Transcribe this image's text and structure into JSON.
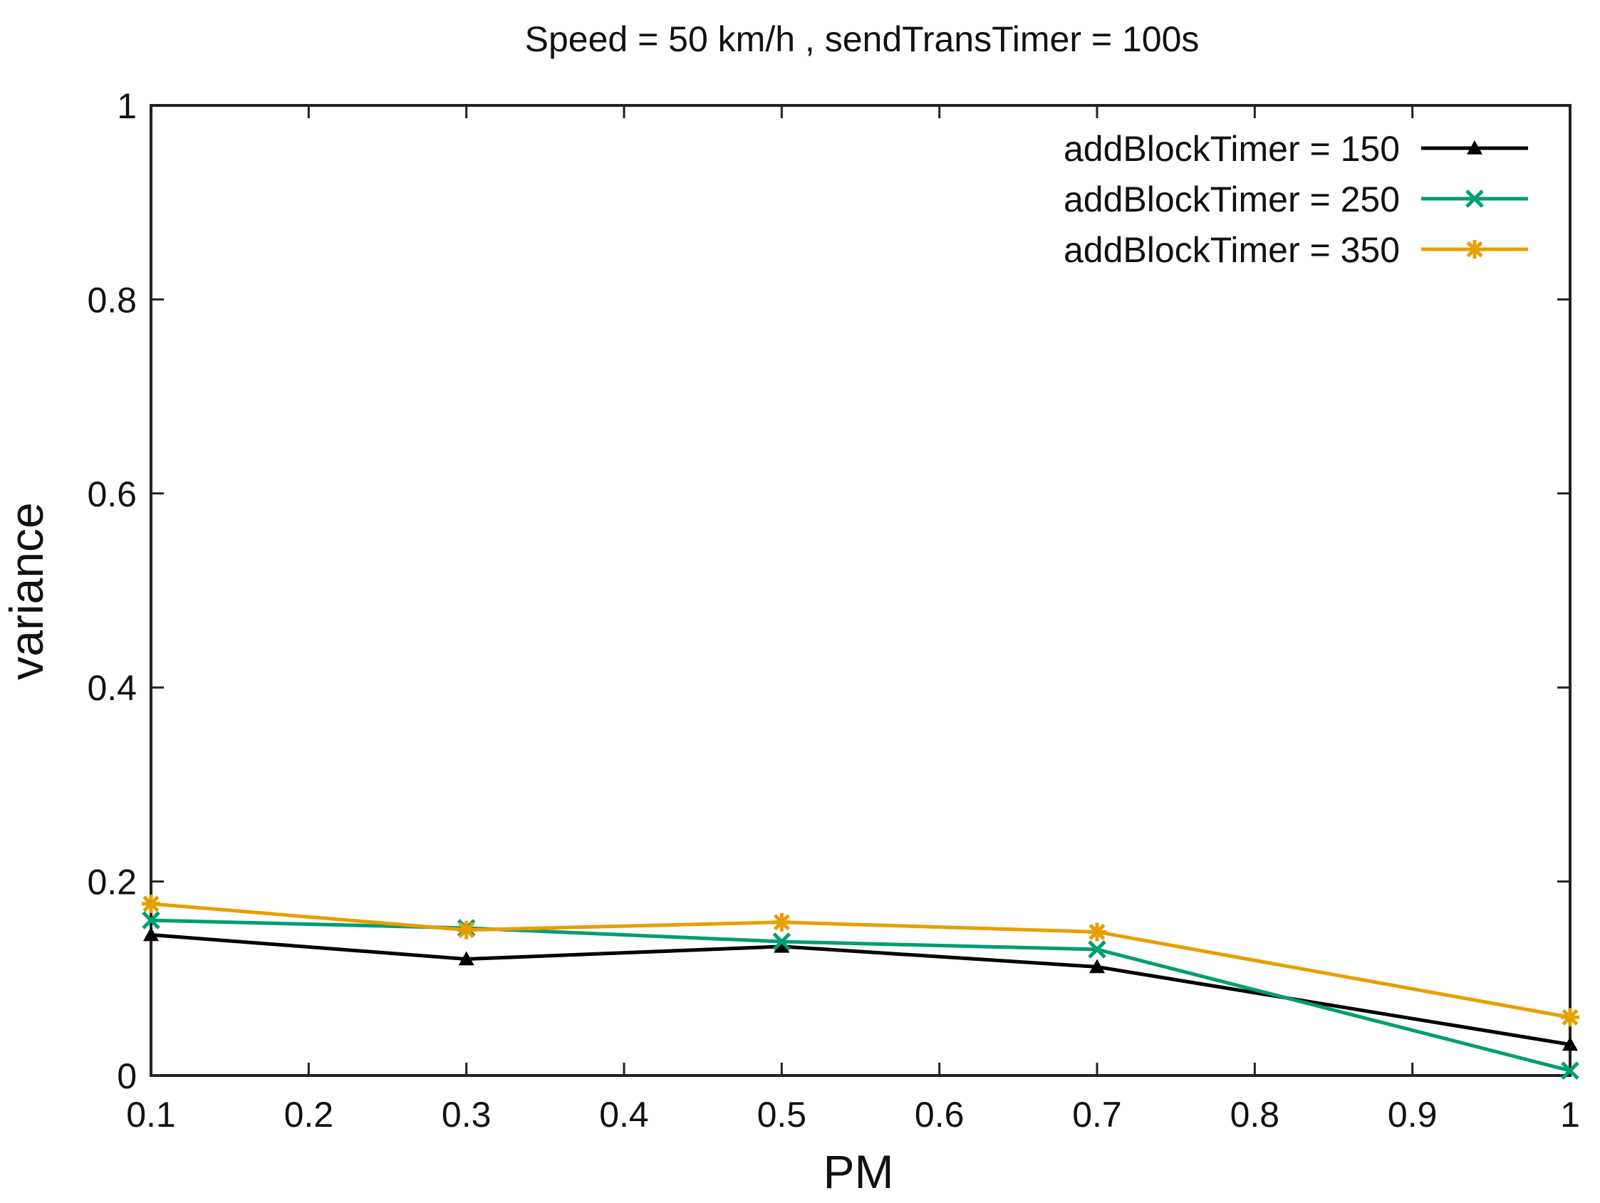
{
  "chart_data": {
    "type": "line",
    "title": "Speed = 50 km/h , sendTransTimer = 100s",
    "xlabel": "PM",
    "ylabel": "variance",
    "xlim": [
      0.1,
      1
    ],
    "ylim": [
      0,
      1
    ],
    "xticks": [
      0.1,
      0.2,
      0.3,
      0.4,
      0.5,
      0.6,
      0.7,
      0.8,
      0.9,
      1
    ],
    "xtick_labels": [
      "0.1",
      "0.2",
      "0.3",
      "0.4",
      "0.5",
      "0.6",
      "0.7",
      "0.8",
      "0.9",
      "1"
    ],
    "yticks": [
      0,
      0.2,
      0.4,
      0.6,
      0.8,
      1
    ],
    "ytick_labels": [
      "0",
      "0.2",
      "0.4",
      "0.6",
      "0.8",
      "1"
    ],
    "grid": false,
    "legend_position": "top-right",
    "x": [
      0.1,
      0.3,
      0.5,
      0.7,
      1
    ],
    "series": [
      {
        "name": "addBlockTimer = 150",
        "color": "#000000",
        "marker": "triangle",
        "values": [
          0.145,
          0.12,
          0.133,
          0.112,
          0.032
        ]
      },
      {
        "name": "addBlockTimer = 250",
        "color": "#009e73",
        "marker": "x",
        "values": [
          0.16,
          0.152,
          0.138,
          0.13,
          0.005
        ]
      },
      {
        "name": "addBlockTimer = 350",
        "color": "#e69f00",
        "marker": "asterisk",
        "values": [
          0.177,
          0.15,
          0.158,
          0.148,
          0.06
        ]
      }
    ]
  }
}
